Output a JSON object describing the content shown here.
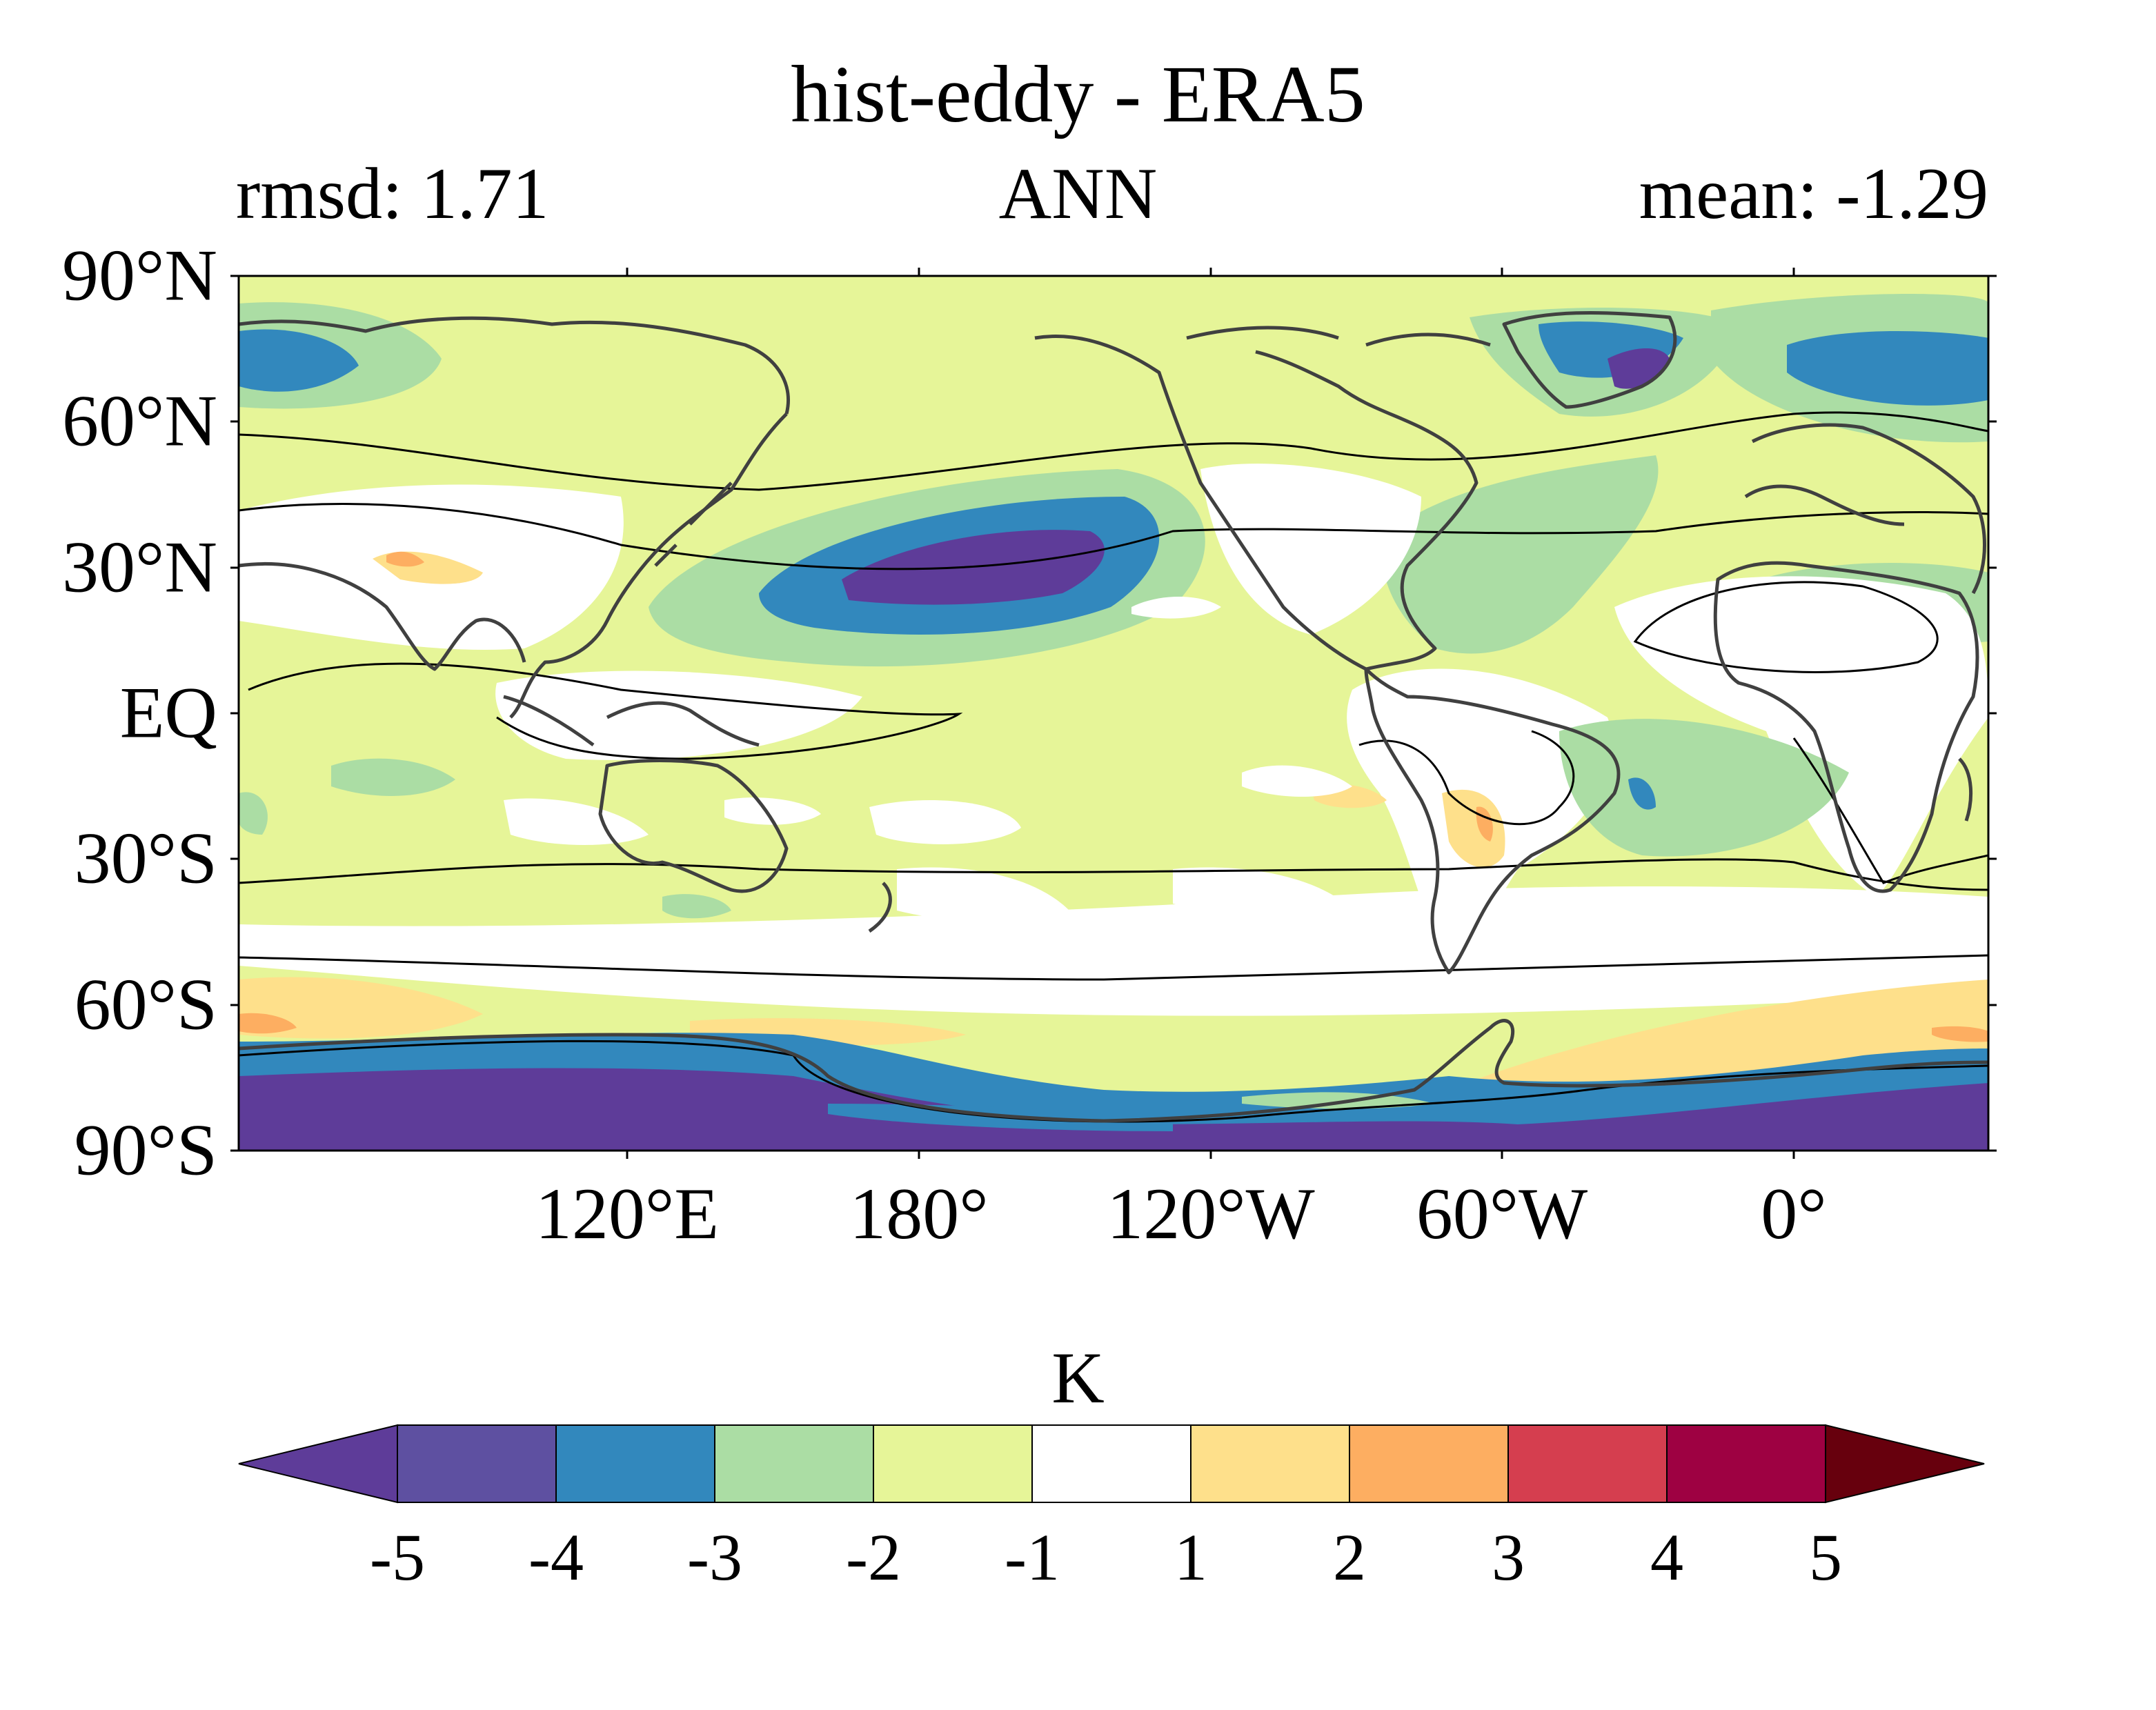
{
  "title": "hist-eddy - ERA5",
  "subtitle_left": "rmsd: 1.71",
  "subtitle_center": "ANN",
  "subtitle_right": "mean: -1.29",
  "map": {
    "projection": "equirectangular",
    "central_longitude": 30,
    "lat_ticks": [
      "90°N",
      "60°N",
      "30°N",
      "EQ",
      "30°S",
      "60°S",
      "90°S"
    ],
    "lon_ticks": [
      "120°E",
      "180°",
      "120°W",
      "60°W",
      "0°"
    ],
    "fields": [
      {
        "name": "n-pacific-low",
        "level": "-4 to -5"
      },
      {
        "name": "greenland",
        "level": "-4 to -5"
      },
      {
        "name": "antarctica",
        "level": "-5"
      },
      {
        "name": "southern-ocean",
        "level": "1 to 2"
      }
    ]
  },
  "colorbar": {
    "unit": "K",
    "levels": [
      "-5",
      "-4",
      "-3",
      "-2",
      "-1",
      "1",
      "2",
      "3",
      "4",
      "5"
    ],
    "colors": [
      "#5e3c99",
      "#5e50a1",
      "#3288bd",
      "#abdda4",
      "#e6f598",
      "#ffffff",
      "#fee08b",
      "#fdae61",
      "#d53e4f",
      "#9e0142",
      "#67000d"
    ],
    "extend": "both"
  }
}
